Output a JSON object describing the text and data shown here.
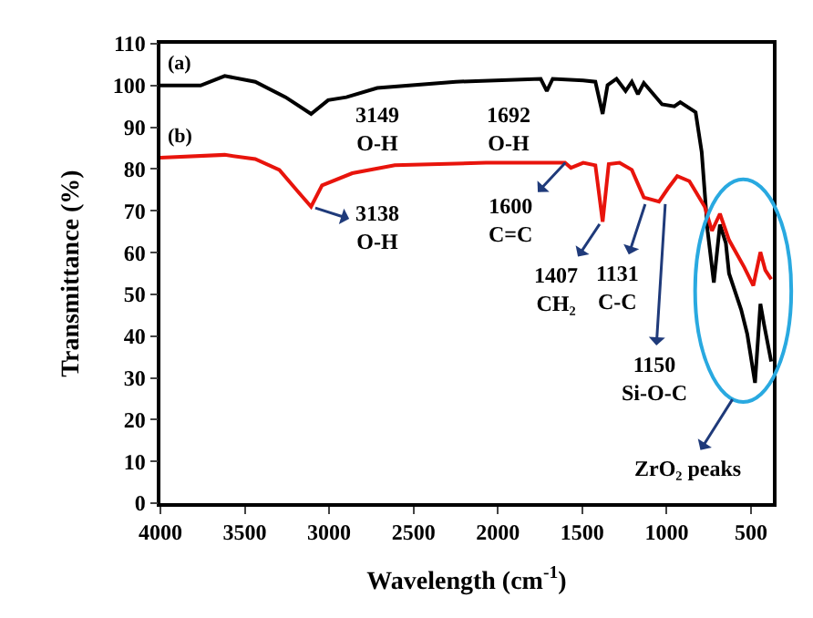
{
  "chart_data": {
    "type": "line",
    "xlabel": "Wavelength (cm$^{-1}$)",
    "ylabel": "Transmittance (%)",
    "xlim": [
      4000,
      370
    ],
    "xticks": [
      4000,
      3500,
      3000,
      2500,
      2000,
      1500,
      1000,
      500
    ],
    "ylim": [
      0,
      110
    ],
    "yticks": [
      0,
      10,
      20,
      30,
      40,
      50,
      60,
      70,
      80,
      90,
      100,
      110
    ],
    "legend": false,
    "marker": "none",
    "line_style": "solid",
    "series": [
      {
        "name": "(a)",
        "color": "#000000",
        "x": [
          4000,
          3762,
          3619,
          3438,
          3258,
          3107,
          3006,
          2898,
          2715,
          2250,
          1746,
          1710,
          1675,
          1494,
          1422,
          1379,
          1350,
          1297,
          1243,
          1206,
          1170,
          1135,
          1027,
          954,
          919,
          828,
          792,
          757,
          720,
          684,
          649,
          630,
          558,
          522,
          476,
          444,
          422,
          380
        ],
        "values": [
          100,
          100,
          102.3,
          100.9,
          97.2,
          93.2,
          96.5,
          97.2,
          99.4,
          100.9,
          101.6,
          98.7,
          101.6,
          101.2,
          100.9,
          93.2,
          100.1,
          101.6,
          98.7,
          100.9,
          97.9,
          100.6,
          95.5,
          95.0,
          96.0,
          93.6,
          84.1,
          65.2,
          52.8,
          66.7,
          62.3,
          55.0,
          46.3,
          40.5,
          28.8,
          47.7,
          42.7,
          33.9
        ]
      },
      {
        "name": "(b)",
        "color": "#e8140c",
        "x": [
          4000,
          3619,
          3438,
          3295,
          3187,
          3107,
          3042,
          2863,
          2611,
          2070,
          1602,
          1567,
          1494,
          1422,
          1379,
          1343,
          1279,
          1206,
          1135,
          1045,
          991,
          937,
          865,
          774,
          731,
          684,
          630,
          540,
          486,
          444,
          415,
          380
        ],
        "values": [
          82.7,
          83.4,
          82.4,
          79.8,
          74.7,
          71.0,
          76.1,
          79.0,
          80.9,
          81.5,
          81.5,
          80.3,
          81.5,
          80.9,
          67.4,
          81.2,
          81.5,
          79.8,
          73.2,
          72.2,
          75.4,
          78.3,
          77.1,
          71.0,
          65.2,
          69.3,
          63.0,
          56.5,
          52.1,
          60.1,
          55.8,
          53.6
        ]
      }
    ],
    "annotations": [
      "3149\nO-H",
      "1692\nO-H",
      {
        "text": "3138\nO-H",
        "x": 3082,
        "y": 70.7
      },
      {
        "text": "1600\nC=C",
        "x": 1600,
        "y": 81.5
      },
      {
        "text": "1407\nCH₂",
        "x": 1397,
        "y": 66.8
      },
      {
        "text": "1131\nC-C",
        "x": 1127,
        "y": 71.6
      },
      {
        "text": "1150\nSi-O-C",
        "x": 1008,
        "y": 71.6
      },
      "ZrO₂ peaks"
    ]
  }
}
